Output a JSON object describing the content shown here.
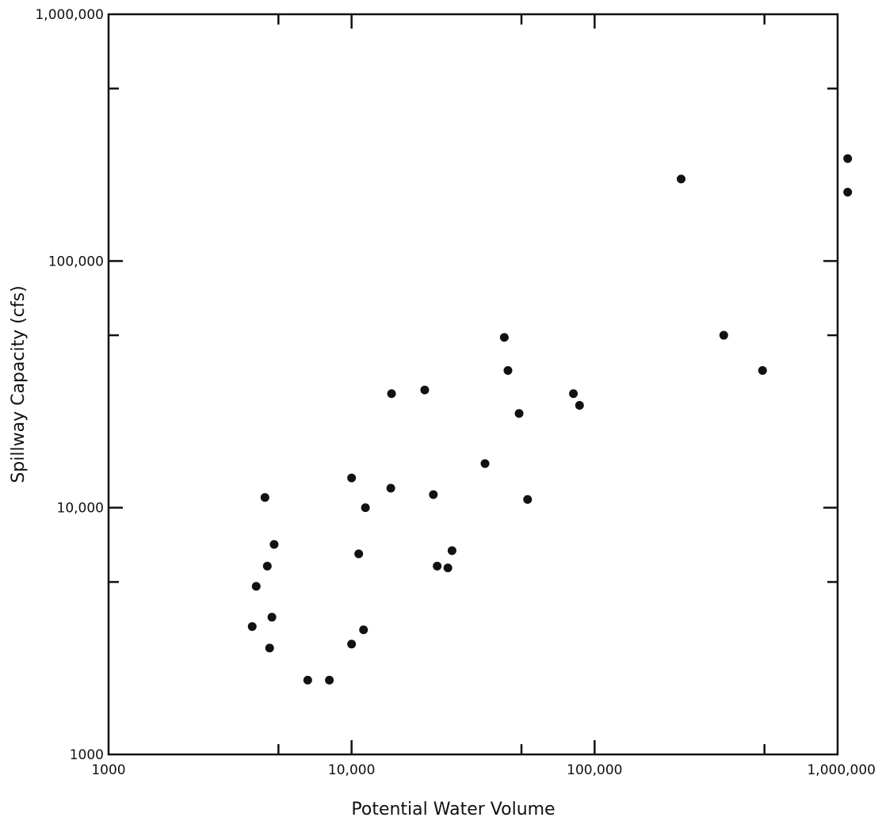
{
  "chart_data": {
    "type": "scatter",
    "title": "",
    "xlabel": "Potential Water Volume",
    "ylabel": "Spillway Capacity (cfs)",
    "xscale": "log",
    "yscale": "log",
    "xlim": [
      1000,
      1000000
    ],
    "ylim": [
      1000,
      1000000
    ],
    "x_tick_labels": [
      "1000",
      "10,000",
      "100,000",
      "1,000,000"
    ],
    "x_tick_values": [
      1000,
      10000,
      100000,
      1000000
    ],
    "y_tick_labels": [
      "1000",
      "10,000",
      "100,000",
      "1,000,000"
    ],
    "y_tick_values": [
      1000,
      10000,
      100000,
      1000000
    ],
    "grid": false,
    "marker_color": "#111111",
    "points": [
      {
        "x": 3900,
        "y": 3300
      },
      {
        "x": 4050,
        "y": 4800
      },
      {
        "x": 4400,
        "y": 11000
      },
      {
        "x": 4500,
        "y": 5800
      },
      {
        "x": 4600,
        "y": 2700
      },
      {
        "x": 4700,
        "y": 3600
      },
      {
        "x": 4800,
        "y": 7100
      },
      {
        "x": 6600,
        "y": 2000
      },
      {
        "x": 8100,
        "y": 2000
      },
      {
        "x": 10000,
        "y": 13200
      },
      {
        "x": 10000,
        "y": 2800
      },
      {
        "x": 10700,
        "y": 6500
      },
      {
        "x": 11200,
        "y": 3200
      },
      {
        "x": 11400,
        "y": 10000
      },
      {
        "x": 14500,
        "y": 12000
      },
      {
        "x": 14600,
        "y": 29000
      },
      {
        "x": 20000,
        "y": 30000
      },
      {
        "x": 21700,
        "y": 11300
      },
      {
        "x": 22500,
        "y": 5800
      },
      {
        "x": 24900,
        "y": 5700
      },
      {
        "x": 25900,
        "y": 6700
      },
      {
        "x": 35400,
        "y": 15100
      },
      {
        "x": 42500,
        "y": 49000
      },
      {
        "x": 44000,
        "y": 36000
      },
      {
        "x": 48900,
        "y": 24100
      },
      {
        "x": 53000,
        "y": 10800
      },
      {
        "x": 81800,
        "y": 29000
      },
      {
        "x": 86700,
        "y": 26000
      },
      {
        "x": 227000,
        "y": 215000
      },
      {
        "x": 340000,
        "y": 50000
      },
      {
        "x": 491000,
        "y": 36000
      },
      {
        "x": 1100000,
        "y": 260000
      },
      {
        "x": 1100000,
        "y": 190000
      }
    ]
  }
}
